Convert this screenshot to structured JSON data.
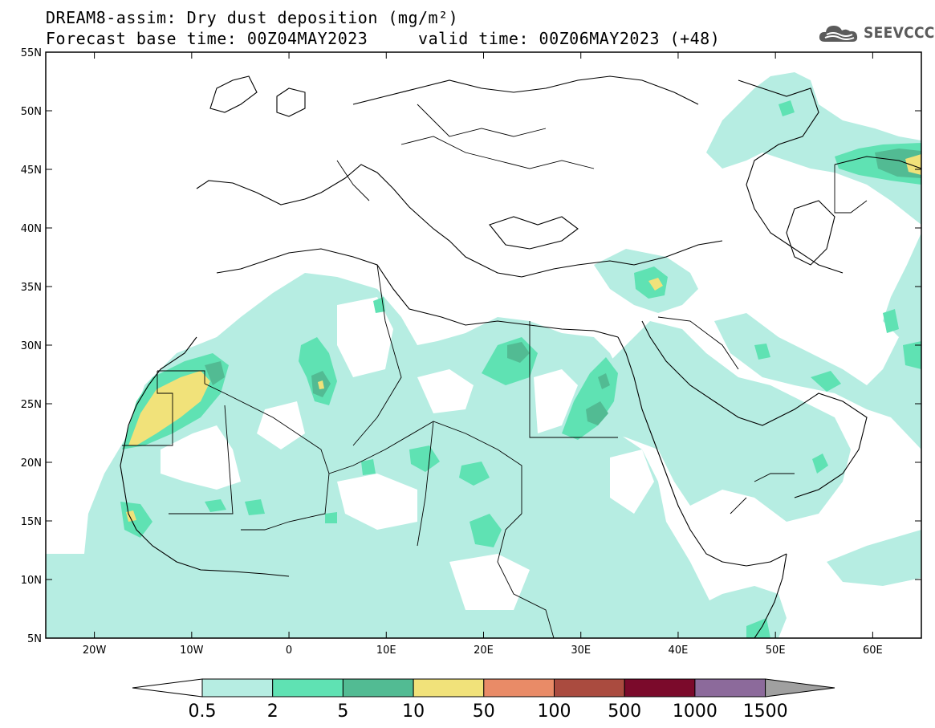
{
  "title": {
    "line1": "DREAM8-assim: Dry dust deposition (mg/m²)",
    "base_time": "Forecast base time: 00Z04MAY2023",
    "valid_time": "valid time: 00Z06MAY2023 (+48)"
  },
  "brand": {
    "name": "SEEVCCC",
    "icon": "cloud-logo-icon",
    "color": "#5b5b5b"
  },
  "map": {
    "lon_range": [
      -25,
      65
    ],
    "lat_range": [
      5,
      55
    ],
    "lat_ticks": [
      {
        "value": 55,
        "label": "55N"
      },
      {
        "value": 50,
        "label": "50N"
      },
      {
        "value": 45,
        "label": "45N"
      },
      {
        "value": 40,
        "label": "40N"
      },
      {
        "value": 35,
        "label": "35N"
      },
      {
        "value": 30,
        "label": "30N"
      },
      {
        "value": 25,
        "label": "25N"
      },
      {
        "value": 20,
        "label": "20N"
      },
      {
        "value": 15,
        "label": "15N"
      },
      {
        "value": 10,
        "label": "10N"
      },
      {
        "value": 5,
        "label": "5N"
      }
    ],
    "lon_ticks": [
      {
        "value": -20,
        "label": "20W"
      },
      {
        "value": -10,
        "label": "10W"
      },
      {
        "value": 0,
        "label": "0"
      },
      {
        "value": 10,
        "label": "10E"
      },
      {
        "value": 20,
        "label": "20E"
      },
      {
        "value": 30,
        "label": "30E"
      },
      {
        "value": 40,
        "label": "40E"
      },
      {
        "value": 50,
        "label": "50E"
      },
      {
        "value": 60,
        "label": "60E"
      }
    ]
  },
  "colorbar": {
    "labels": [
      "0.5",
      "2",
      "5",
      "10",
      "50",
      "100",
      "500",
      "1000",
      "1500"
    ],
    "colors": [
      "#b6ede2",
      "#5fe2b3",
      "#52bb93",
      "#f1e27a",
      "#e98b67",
      "#aa4b3f",
      "#7b0a2b",
      "#8c6a9b",
      "#a0a0a0"
    ],
    "under_color": "#ffffff"
  },
  "fields": {
    "level1_color": "#b6ede2",
    "level2_color": "#5fe2b3",
    "level3_color": "#52bb93",
    "level4_color": "#f1e27a"
  }
}
